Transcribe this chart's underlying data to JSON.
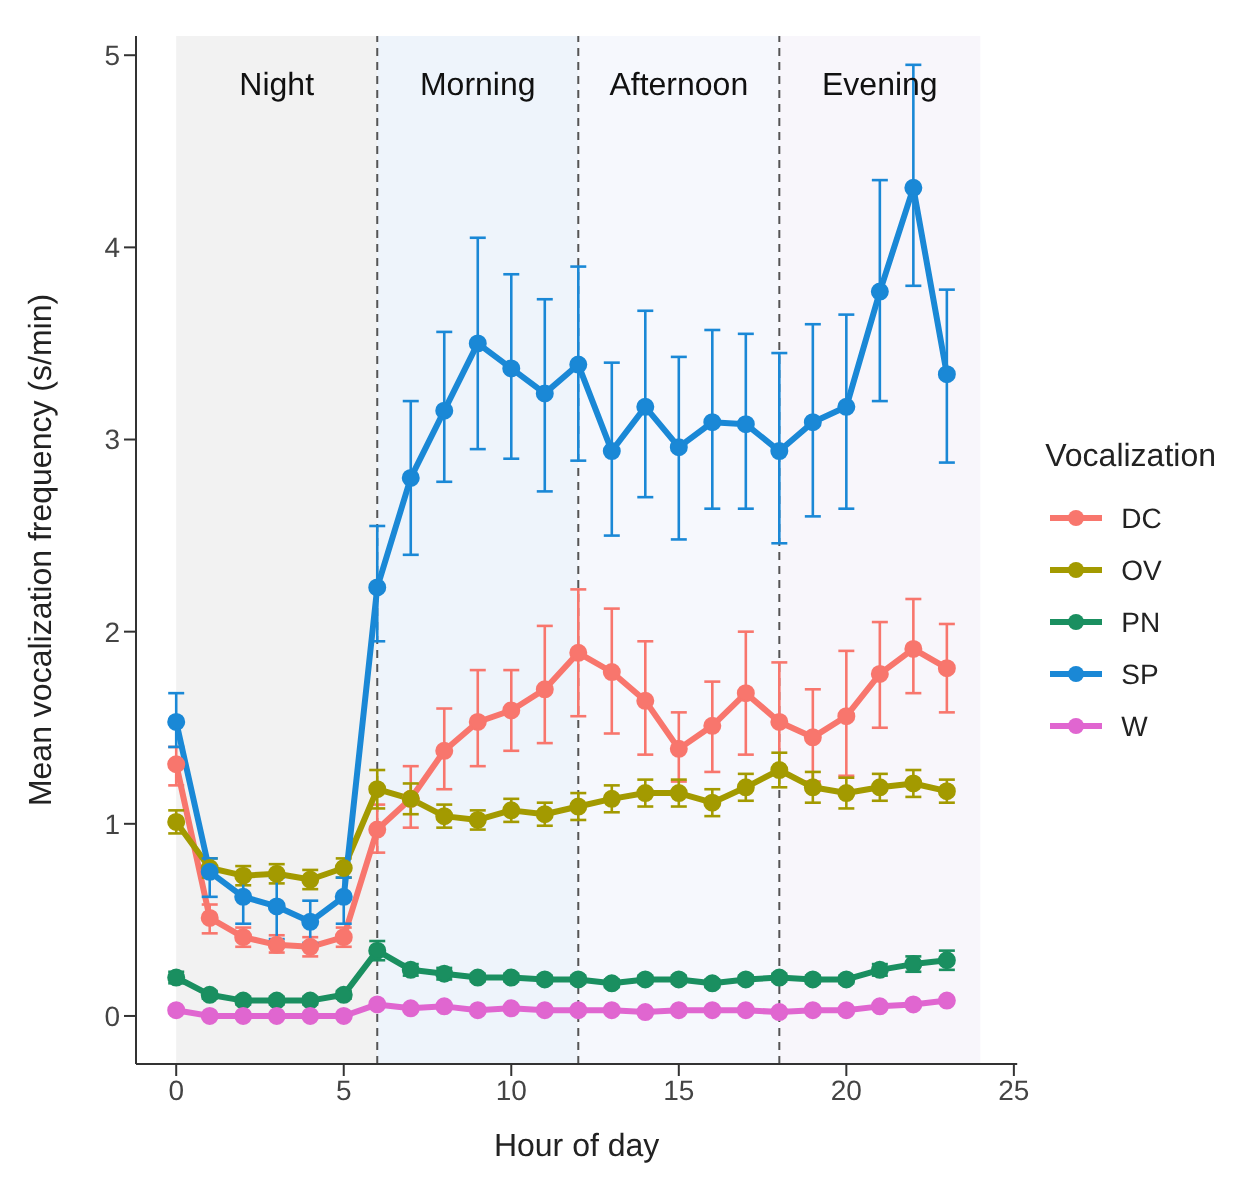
{
  "chart_data": {
    "type": "line",
    "xlabel": "Hour of day",
    "ylabel": "Mean vocalization frequency (s/min)",
    "legend_title": "Vocalization",
    "legend": "right",
    "marker": "circle",
    "line_style": "solid",
    "x": [
      0,
      1,
      2,
      3,
      4,
      5,
      6,
      7,
      8,
      9,
      10,
      11,
      12,
      13,
      14,
      15,
      16,
      17,
      18,
      19,
      20,
      21,
      22,
      23
    ],
    "xlim": [
      -1.2,
      25.1
    ],
    "xticks": [
      0,
      5,
      10,
      15,
      20,
      25
    ],
    "ylim": [
      -0.25,
      5.1
    ],
    "yticks": [
      0,
      1,
      2,
      3,
      4,
      5
    ],
    "bands": [
      {
        "axis": "x",
        "from": 0,
        "to": 6,
        "label": "Night",
        "color": "#f2f2f2"
      },
      {
        "axis": "x",
        "from": 6,
        "to": 12,
        "label": "Morning",
        "color": "#eef4fb"
      },
      {
        "axis": "x",
        "from": 12,
        "to": 18,
        "label": "Afternoon",
        "color": "#f6f8fd"
      },
      {
        "axis": "x",
        "from": 18,
        "to": 24,
        "label": "Evening",
        "color": "#f8f6fb"
      }
    ],
    "ref_lines": [
      {
        "axis": "x",
        "value": 6,
        "line_style": "dashed",
        "color": "#555555"
      },
      {
        "axis": "x",
        "value": 12,
        "line_style": "dashed",
        "color": "#555555"
      },
      {
        "axis": "x",
        "value": 18,
        "line_style": "dashed",
        "color": "#555555"
      }
    ],
    "series": [
      {
        "name": "DC",
        "color": "#f8766d",
        "values": [
          1.31,
          0.51,
          0.41,
          0.37,
          0.36,
          0.41,
          0.97,
          1.13,
          1.38,
          1.53,
          1.59,
          1.7,
          1.89,
          1.79,
          1.64,
          1.39,
          1.51,
          1.68,
          1.53,
          1.45,
          1.56,
          1.78,
          1.91,
          1.81
        ],
        "errors": [
          [
            1.2,
            1.4
          ],
          [
            0.43,
            0.58
          ],
          [
            0.36,
            0.46
          ],
          [
            0.33,
            0.42
          ],
          [
            0.31,
            0.41
          ],
          [
            0.36,
            0.46
          ],
          [
            0.85,
            1.1
          ],
          [
            0.98,
            1.3
          ],
          [
            1.18,
            1.6
          ],
          [
            1.3,
            1.8
          ],
          [
            1.38,
            1.8
          ],
          [
            1.42,
            2.03
          ],
          [
            1.56,
            2.22
          ],
          [
            1.47,
            2.12
          ],
          [
            1.36,
            1.95
          ],
          [
            1.22,
            1.58
          ],
          [
            1.27,
            1.74
          ],
          [
            1.36,
            2.0
          ],
          [
            1.26,
            1.84
          ],
          [
            1.22,
            1.7
          ],
          [
            1.25,
            1.9
          ],
          [
            1.5,
            2.05
          ],
          [
            1.68,
            2.17
          ],
          [
            1.58,
            2.04
          ]
        ]
      },
      {
        "name": "OV",
        "color": "#a39a00",
        "values": [
          1.01,
          0.77,
          0.73,
          0.74,
          0.71,
          0.77,
          1.18,
          1.13,
          1.04,
          1.02,
          1.07,
          1.05,
          1.09,
          1.13,
          1.16,
          1.16,
          1.11,
          1.19,
          1.28,
          1.19,
          1.16,
          1.19,
          1.21,
          1.17
        ],
        "errors": [
          0.06,
          0.05,
          0.05,
          0.05,
          0.05,
          0.05,
          0.1,
          0.08,
          0.06,
          0.05,
          0.06,
          0.06,
          0.07,
          0.07,
          0.07,
          0.07,
          0.07,
          0.07,
          0.09,
          0.08,
          0.08,
          0.07,
          0.07,
          0.06
        ]
      },
      {
        "name": "PN",
        "color": "#1a8f60",
        "values": [
          0.2,
          0.11,
          0.08,
          0.08,
          0.08,
          0.11,
          0.34,
          0.24,
          0.22,
          0.2,
          0.2,
          0.19,
          0.19,
          0.17,
          0.19,
          0.19,
          0.17,
          0.19,
          0.2,
          0.19,
          0.19,
          0.24,
          0.27,
          0.29
        ],
        "errors": [
          0.03,
          0.02,
          0.02,
          0.02,
          0.02,
          0.02,
          0.05,
          0.03,
          0.03,
          0.02,
          0.02,
          0.02,
          0.02,
          0.02,
          0.02,
          0.02,
          0.02,
          0.02,
          0.02,
          0.02,
          0.02,
          0.03,
          0.04,
          0.05
        ]
      },
      {
        "name": "SP",
        "color": "#1a88d6",
        "values": [
          1.53,
          0.75,
          0.62,
          0.57,
          0.49,
          0.62,
          2.23,
          2.8,
          3.15,
          3.5,
          3.37,
          3.24,
          3.39,
          2.94,
          3.17,
          2.96,
          3.09,
          3.08,
          2.94,
          3.09,
          3.17,
          3.77,
          4.31,
          3.34
        ],
        "errors": [
          [
            1.4,
            1.68
          ],
          [
            0.62,
            0.82
          ],
          [
            0.48,
            0.72
          ],
          [
            0.4,
            0.72
          ],
          [
            0.38,
            0.6
          ],
          [
            0.48,
            0.72
          ],
          [
            1.95,
            2.55
          ],
          [
            2.4,
            3.2
          ],
          [
            2.78,
            3.56
          ],
          [
            2.95,
            4.05
          ],
          [
            2.9,
            3.86
          ],
          [
            2.73,
            3.73
          ],
          [
            2.89,
            3.9
          ],
          [
            2.5,
            3.4
          ],
          [
            2.7,
            3.67
          ],
          [
            2.48,
            3.43
          ],
          [
            2.64,
            3.57
          ],
          [
            2.64,
            3.55
          ],
          [
            2.46,
            3.45
          ],
          [
            2.6,
            3.6
          ],
          [
            2.64,
            3.65
          ],
          [
            3.2,
            4.35
          ],
          [
            3.8,
            4.95
          ],
          [
            2.88,
            3.78
          ]
        ]
      },
      {
        "name": "W",
        "color": "#e066d0",
        "values": [
          0.03,
          0.0,
          0.0,
          0.0,
          0.0,
          0.0,
          0.06,
          0.04,
          0.05,
          0.03,
          0.04,
          0.03,
          0.03,
          0.03,
          0.02,
          0.03,
          0.03,
          0.03,
          0.02,
          0.03,
          0.03,
          0.05,
          0.06,
          0.08
        ]
      }
    ]
  }
}
